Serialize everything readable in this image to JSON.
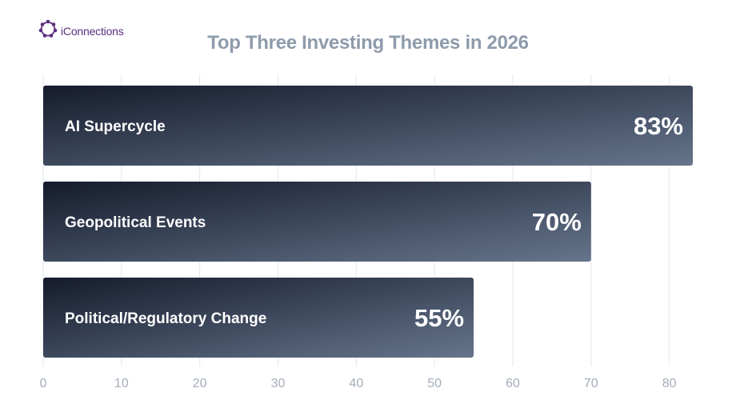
{
  "brand": {
    "name": "iConnections",
    "icon": "iconnections-logo-icon",
    "color": "#5b2d7e"
  },
  "chart_data": {
    "type": "bar",
    "orientation": "horizontal",
    "title": "Top Three Investing Themes in 2026",
    "categories": [
      "AI Supercycle",
      "Geopolitical Events",
      "Political/Regulatory Change"
    ],
    "values": [
      83,
      70,
      55
    ],
    "value_labels": [
      "83%",
      "70%",
      "55%"
    ],
    "xlim": [
      0,
      83
    ],
    "xticks": [
      0,
      10,
      20,
      30,
      40,
      50,
      60,
      70,
      80
    ],
    "xlabel": "",
    "ylabel": "",
    "grid": true,
    "legend": "none",
    "colors": {
      "bar_start": "#151b2c",
      "bar_end": "#66758c",
      "title": "#8e9bab",
      "ticks": "#a4adb9"
    }
  }
}
